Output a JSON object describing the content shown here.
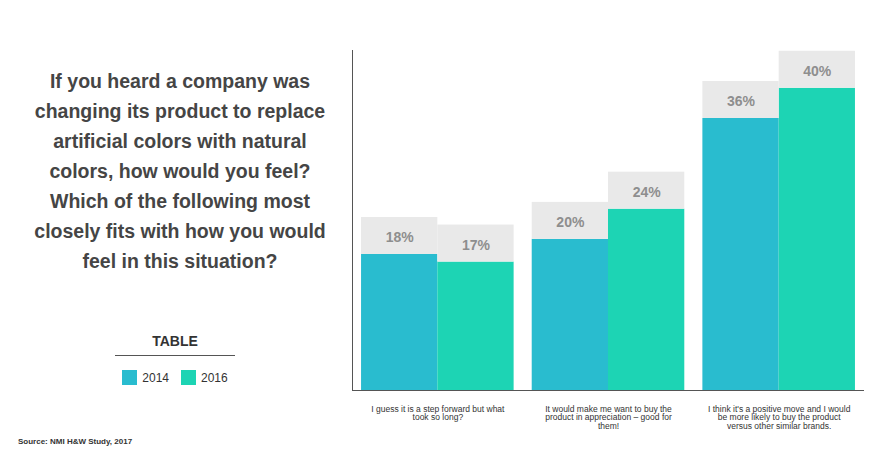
{
  "chart_data": {
    "type": "bar",
    "title": "If you heard a company was changing its product to replace artificial colors with natural colors, how would you feel? Which of the following most closely fits with how you would feel in this situation?",
    "categories": [
      "I guess it is a step forward but what took so long?",
      "It would make me want to buy the product in appreciation – good for them!",
      "I think it's a positive move and I would be more likely to buy the product versus other similar brands."
    ],
    "series": [
      {
        "name": "2014",
        "color": "#29bccf",
        "values": [
          18,
          20,
          36
        ],
        "value_labels": [
          "18%",
          "20%",
          "36%"
        ]
      },
      {
        "name": "2016",
        "color": "#1dd4b4",
        "values": [
          17,
          24,
          40
        ],
        "value_labels": [
          "17%",
          "24%",
          "40%"
        ]
      }
    ],
    "ylim": [
      0,
      45
    ],
    "yticks": [],
    "tick_labels": "x",
    "data_labels": true,
    "legend": "bottom-left",
    "legend_title": "TABLE",
    "caption": "Source: NMI H&W Study, 2017"
  }
}
